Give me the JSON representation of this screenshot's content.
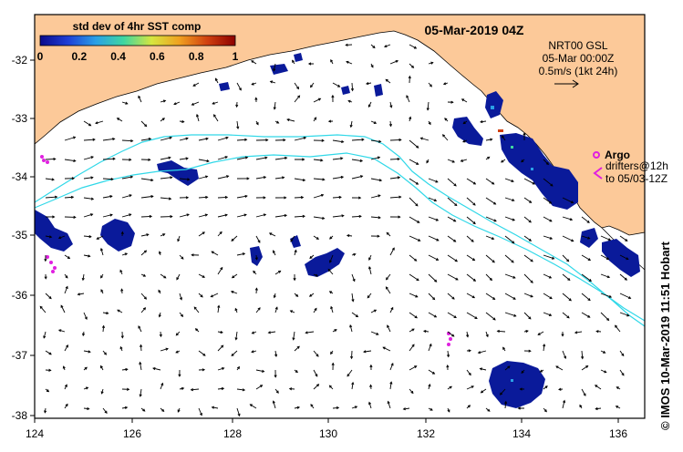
{
  "title": "05-Mar-2019 04Z",
  "colorbar": {
    "label": "std dev of 4hr SST comp",
    "ticks": [
      "0",
      "0.2",
      "0.4",
      "0.6",
      "0.8",
      "1"
    ],
    "colors": [
      "#0a0a8c",
      "#1f3fd6",
      "#2aa0e6",
      "#3fd6a0",
      "#d6e63f",
      "#f0a020",
      "#d04010",
      "#8c0000"
    ]
  },
  "current_legend": {
    "lines": [
      "NRT00 GSL",
      "05-Mar 00:00Z",
      "0.5m/s (1kt 24h)"
    ]
  },
  "argo_legend": {
    "label": "Argo",
    "lines": [
      "drifters@12h",
      "to 05/03-12Z"
    ]
  },
  "side_credit": "© IMOS 10-Mar-2019 11:51 Hobart",
  "axes": {
    "lon_ticks": [
      "124",
      "126",
      "128",
      "130",
      "132",
      "134",
      "136"
    ],
    "lat_ticks": [
      "-32",
      "-33",
      "-34",
      "-35",
      "-36",
      "-37",
      "-38"
    ]
  },
  "colors": {
    "land": "#fcc999",
    "ocean": "#ffffff",
    "contour": "#30d8e8",
    "argo": "#e020e0",
    "sst": "#0a1a9a"
  }
}
